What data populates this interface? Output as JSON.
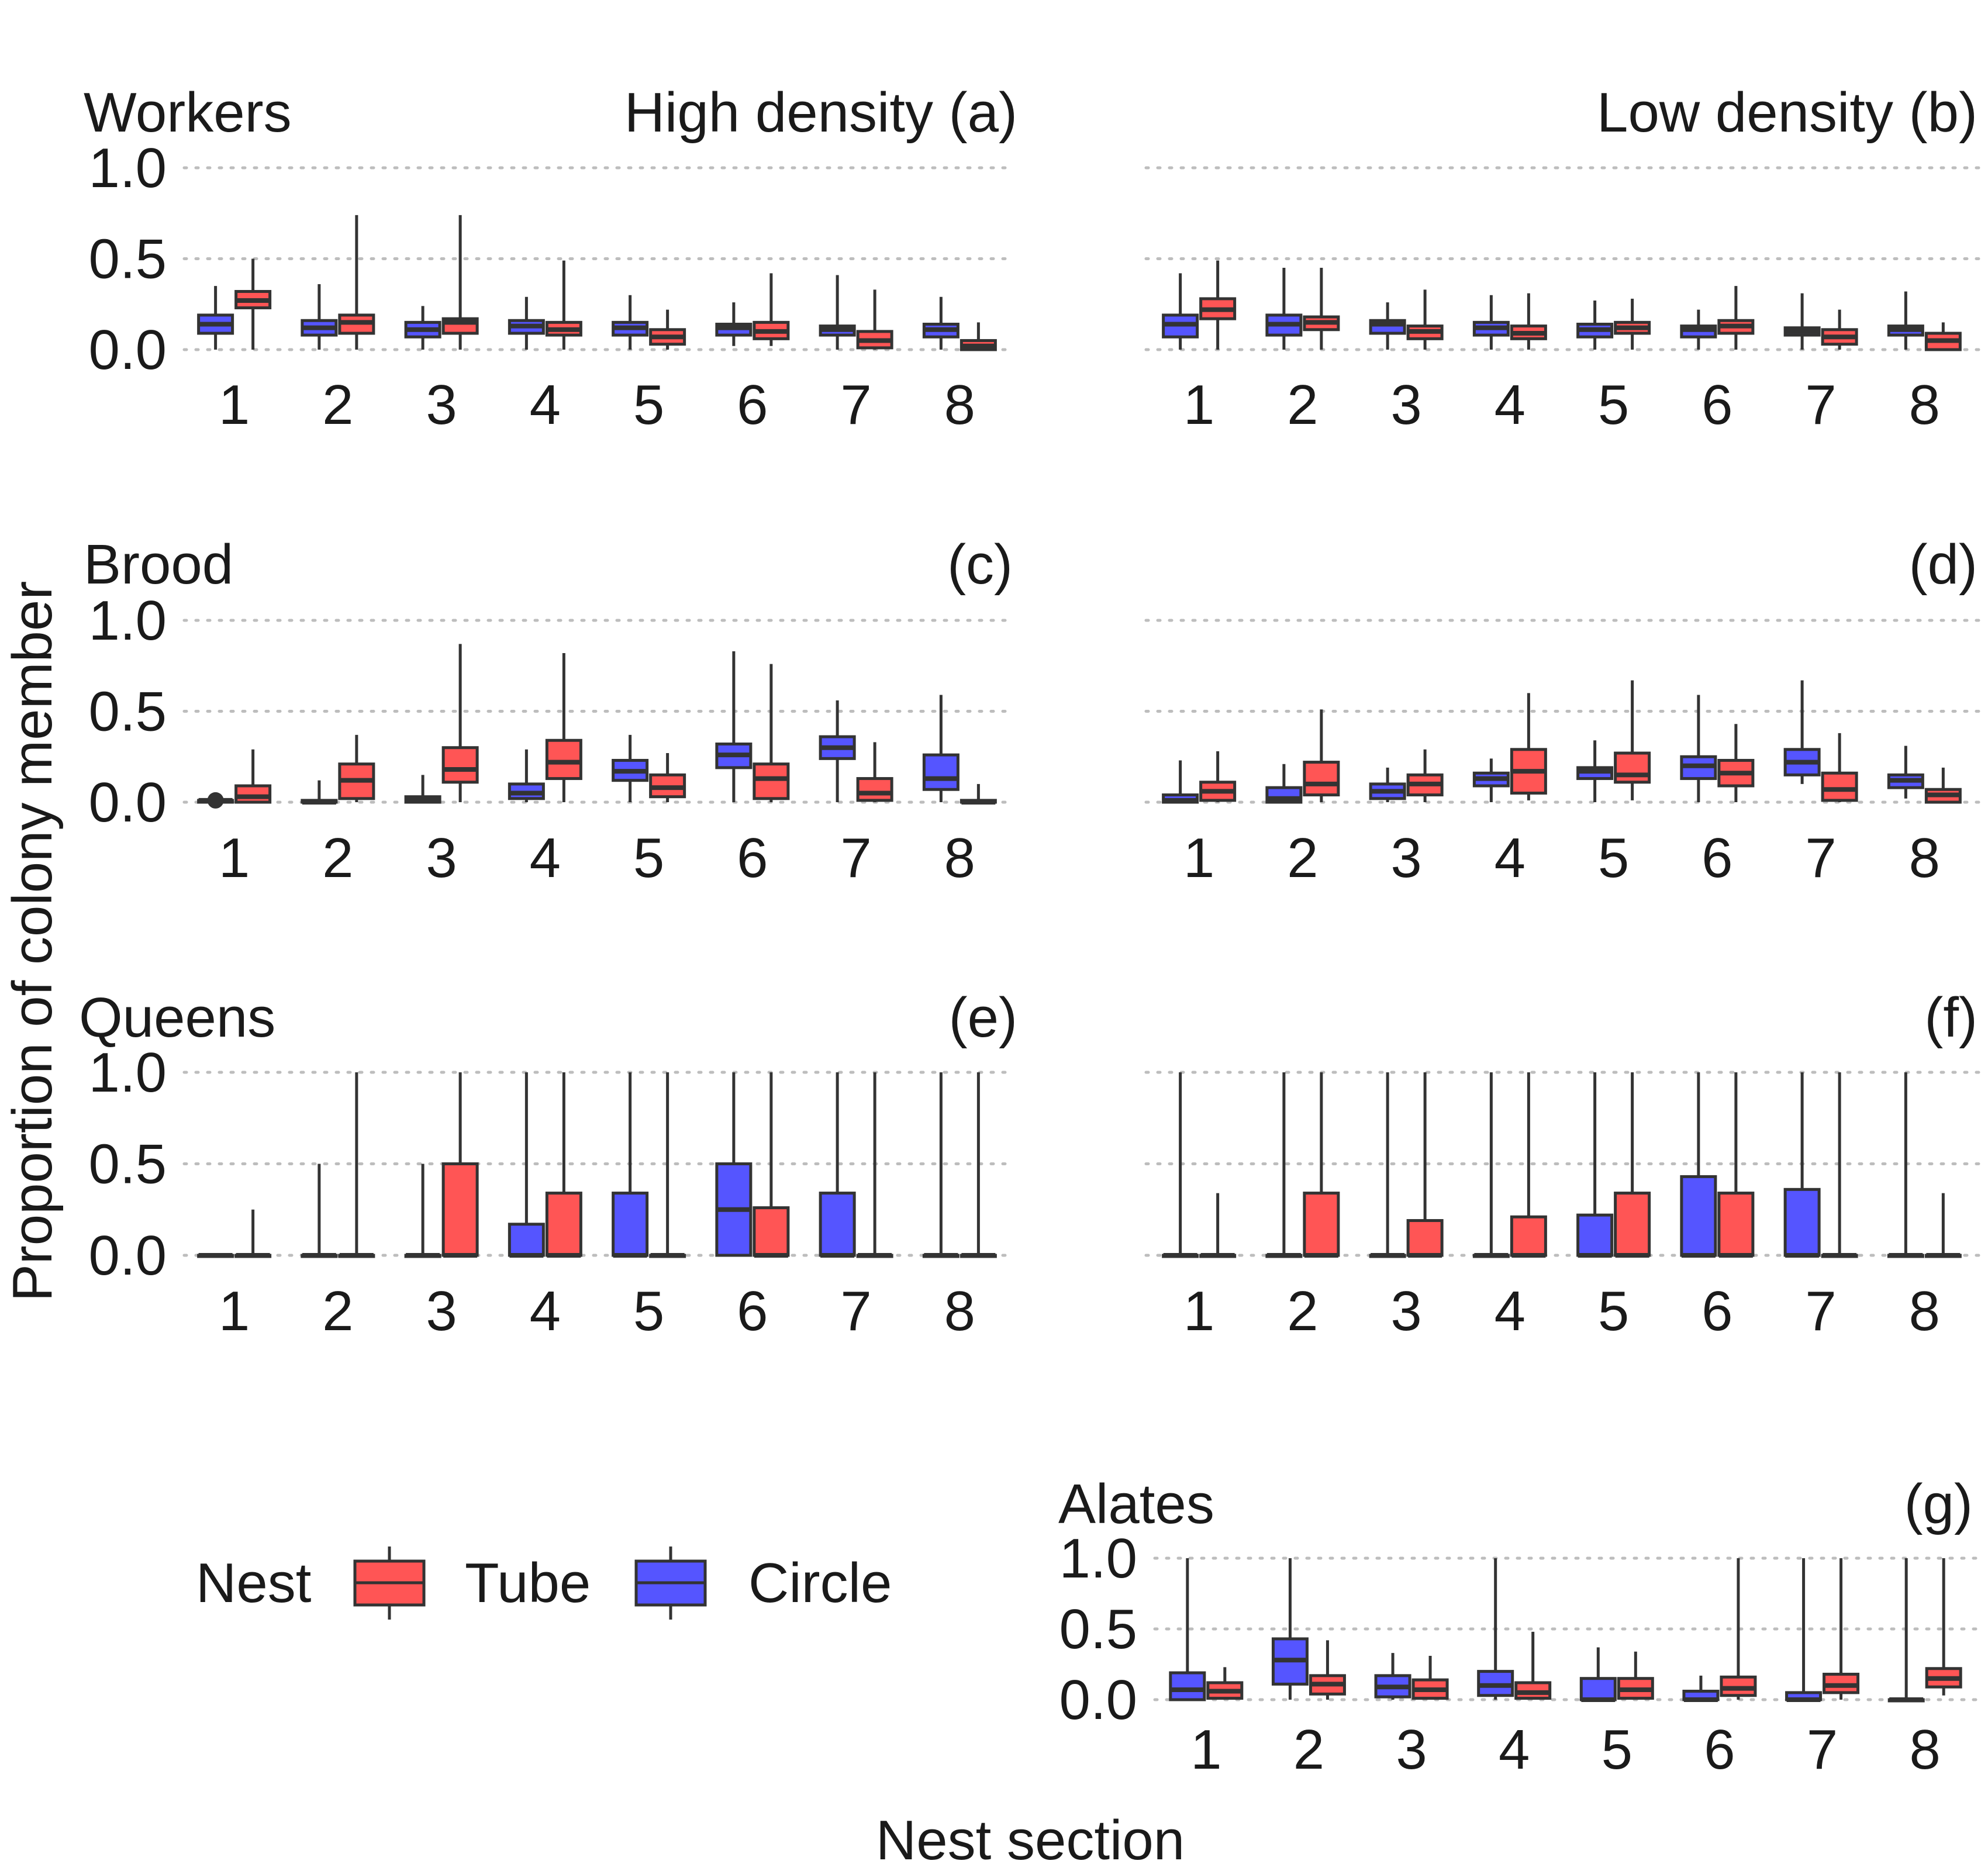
{
  "chart_data": {
    "type": "boxplot",
    "xlabel": "Nest section",
    "ylabel": "Proportion of colony member",
    "ylim": [
      0,
      1
    ],
    "yticks": [
      "0.0",
      "0.5",
      "1.0"
    ],
    "categories": [
      "1",
      "2",
      "3",
      "4",
      "5",
      "6",
      "7",
      "8"
    ],
    "colors": {
      "Circle": "#5555ff",
      "Tube": "#ff5555"
    },
    "legend": {
      "title": "Nest",
      "entries": [
        {
          "name": "Tube",
          "color": "#ff5555"
        },
        {
          "name": "Circle",
          "color": "#5555ff"
        }
      ]
    },
    "panels": [
      {
        "label": "(a)",
        "row_title": "Workers",
        "column_title": "High density",
        "circle": [
          [
            0,
            0.09,
            0.14,
            0.19,
            0.35
          ],
          [
            0,
            0.08,
            0.12,
            0.16,
            0.36
          ],
          [
            0,
            0.07,
            0.11,
            0.15,
            0.24
          ],
          [
            0,
            0.09,
            0.13,
            0.16,
            0.29
          ],
          [
            0,
            0.08,
            0.12,
            0.15,
            0.3
          ],
          [
            0.02,
            0.08,
            0.12,
            0.14,
            0.26
          ],
          [
            0,
            0.08,
            0.11,
            0.13,
            0.41
          ],
          [
            0,
            0.07,
            0.11,
            0.14,
            0.29
          ]
        ],
        "tube": [
          [
            0,
            0.23,
            0.27,
            0.32,
            0.5
          ],
          [
            0,
            0.09,
            0.15,
            0.19,
            0.74
          ],
          [
            0,
            0.09,
            0.15,
            0.17,
            0.74
          ],
          [
            0,
            0.08,
            0.11,
            0.15,
            0.49
          ],
          [
            0,
            0.03,
            0.07,
            0.11,
            0.22
          ],
          [
            0.02,
            0.06,
            0.1,
            0.15,
            0.42
          ],
          [
            0,
            0.01,
            0.05,
            0.1,
            0.33
          ],
          [
            0,
            0,
            0.02,
            0.05,
            0.15
          ]
        ]
      },
      {
        "label": "(b)",
        "column_title": "Low density",
        "circle": [
          [
            0,
            0.07,
            0.14,
            0.19,
            0.42
          ],
          [
            0,
            0.08,
            0.14,
            0.19,
            0.45
          ],
          [
            0,
            0.09,
            0.14,
            0.16,
            0.26
          ],
          [
            0,
            0.08,
            0.12,
            0.15,
            0.3
          ],
          [
            0,
            0.07,
            0.11,
            0.14,
            0.27
          ],
          [
            0,
            0.07,
            0.11,
            0.13,
            0.22
          ],
          [
            0,
            0.08,
            0.1,
            0.12,
            0.31
          ],
          [
            0,
            0.08,
            0.11,
            0.13,
            0.32
          ]
        ],
        "tube": [
          [
            0,
            0.17,
            0.22,
            0.28,
            0.49
          ],
          [
            0,
            0.11,
            0.15,
            0.18,
            0.45
          ],
          [
            0,
            0.06,
            0.1,
            0.13,
            0.33
          ],
          [
            0,
            0.06,
            0.09,
            0.13,
            0.31
          ],
          [
            0,
            0.09,
            0.12,
            0.15,
            0.28
          ],
          [
            0,
            0.09,
            0.13,
            0.16,
            0.35
          ],
          [
            0,
            0.03,
            0.07,
            0.11,
            0.22
          ],
          [
            0,
            0,
            0.05,
            0.09,
            0.15
          ]
        ]
      },
      {
        "label": "(c)",
        "row_title": "Brood",
        "circle": [
          [
            0,
            0,
            0.01,
            0.01,
            0.01
          ],
          [
            0,
            0,
            0,
            0.01,
            0.12
          ],
          [
            0,
            0,
            0.01,
            0.03,
            0.15
          ],
          [
            0,
            0.02,
            0.05,
            0.1,
            0.29
          ],
          [
            0,
            0.12,
            0.17,
            0.23,
            0.37
          ],
          [
            0,
            0.19,
            0.26,
            0.32,
            0.83
          ],
          [
            0,
            0.24,
            0.3,
            0.36,
            0.56
          ],
          [
            0,
            0.07,
            0.13,
            0.26,
            0.59
          ]
        ],
        "tube": [
          [
            0,
            0,
            0.03,
            0.09,
            0.29
          ],
          [
            0,
            0.02,
            0.12,
            0.21,
            0.37
          ],
          [
            0,
            0.11,
            0.18,
            0.3,
            0.87
          ],
          [
            0,
            0.13,
            0.22,
            0.34,
            0.82
          ],
          [
            0,
            0.03,
            0.08,
            0.15,
            0.27
          ],
          [
            0,
            0.02,
            0.13,
            0.21,
            0.76
          ],
          [
            0,
            0.01,
            0.05,
            0.13,
            0.33
          ],
          [
            0,
            0,
            0,
            0.01,
            0.1
          ]
        ]
      },
      {
        "label": "(d)",
        "circle": [
          [
            0,
            0,
            0.01,
            0.04,
            0.23
          ],
          [
            0,
            0,
            0.02,
            0.08,
            0.21
          ],
          [
            0,
            0.02,
            0.06,
            0.1,
            0.19
          ],
          [
            0,
            0.09,
            0.13,
            0.16,
            0.24
          ],
          [
            0,
            0.13,
            0.17,
            0.19,
            0.34
          ],
          [
            0,
            0.13,
            0.2,
            0.25,
            0.59
          ],
          [
            0.1,
            0.15,
            0.22,
            0.29,
            0.67
          ],
          [
            0.02,
            0.08,
            0.12,
            0.15,
            0.31
          ]
        ],
        "tube": [
          [
            0,
            0.01,
            0.06,
            0.11,
            0.28
          ],
          [
            0,
            0.04,
            0.1,
            0.22,
            0.51
          ],
          [
            0,
            0.04,
            0.1,
            0.15,
            0.29
          ],
          [
            0.01,
            0.05,
            0.17,
            0.29,
            0.6
          ],
          [
            0.01,
            0.11,
            0.15,
            0.27,
            0.67
          ],
          [
            0,
            0.09,
            0.16,
            0.23,
            0.43
          ],
          [
            0,
            0.01,
            0.07,
            0.16,
            0.38
          ],
          [
            0,
            0,
            0.04,
            0.07,
            0.19
          ]
        ]
      },
      {
        "label": "(e)",
        "row_title": "Queens",
        "circle": [
          [
            0,
            0,
            0,
            0,
            0
          ],
          [
            0,
            0,
            0,
            0,
            0.5
          ],
          [
            0,
            0,
            0,
            0,
            0.5
          ],
          [
            0,
            0,
            0,
            0.17,
            1
          ],
          [
            0,
            0,
            0,
            0.34,
            1
          ],
          [
            0,
            0,
            0.25,
            0.5,
            1
          ],
          [
            0,
            0,
            0,
            0.34,
            1
          ],
          [
            0,
            0,
            0,
            0,
            1
          ]
        ],
        "tube": [
          [
            0,
            0,
            0,
            0,
            0.25
          ],
          [
            0,
            0,
            0,
            0,
            1
          ],
          [
            0,
            0,
            0,
            0.5,
            1
          ],
          [
            0,
            0,
            0,
            0.34,
            1
          ],
          [
            0,
            0,
            0,
            0,
            1
          ],
          [
            0,
            0,
            0,
            0.26,
            1
          ],
          [
            0,
            0,
            0,
            0,
            1
          ],
          [
            0,
            0,
            0,
            0,
            1
          ]
        ]
      },
      {
        "label": "(f)",
        "circle": [
          [
            0,
            0,
            0,
            0,
            1
          ],
          [
            0,
            0,
            0,
            0,
            1
          ],
          [
            0,
            0,
            0,
            0,
            1
          ],
          [
            0,
            0,
            0,
            0,
            1
          ],
          [
            0,
            0,
            0,
            0.22,
            1
          ],
          [
            0,
            0,
            0,
            0.43,
            1
          ],
          [
            0,
            0,
            0,
            0.36,
            1
          ],
          [
            0,
            0,
            0,
            0,
            1
          ]
        ],
        "tube": [
          [
            0,
            0,
            0,
            0,
            0.34
          ],
          [
            0,
            0,
            0,
            0.34,
            1
          ],
          [
            0,
            0,
            0,
            0.19,
            1
          ],
          [
            0,
            0,
            0,
            0.21,
            1
          ],
          [
            0,
            0,
            0,
            0.34,
            1
          ],
          [
            0,
            0,
            0,
            0.34,
            1
          ],
          [
            0,
            0,
            0,
            0,
            1
          ],
          [
            0,
            0,
            0,
            0,
            0.34
          ]
        ]
      },
      {
        "label": "(g)",
        "row_title": "Alates",
        "circle": [
          [
            0,
            0,
            0.07,
            0.19,
            1
          ],
          [
            0,
            0.11,
            0.28,
            0.43,
            1
          ],
          [
            0,
            0.02,
            0.09,
            0.17,
            0.33
          ],
          [
            0,
            0.03,
            0.1,
            0.2,
            1
          ],
          [
            0,
            0,
            0,
            0.15,
            0.37
          ],
          [
            0,
            0,
            0,
            0.06,
            0.17
          ],
          [
            0,
            0,
            0,
            0.05,
            1
          ],
          [
            0,
            0,
            0,
            0,
            1
          ]
        ],
        "tube": [
          [
            0,
            0.01,
            0.06,
            0.12,
            0.23
          ],
          [
            0,
            0.04,
            0.11,
            0.17,
            0.42
          ],
          [
            0,
            0.01,
            0.07,
            0.14,
            0.31
          ],
          [
            0,
            0.01,
            0.05,
            0.12,
            0.48
          ],
          [
            0,
            0.01,
            0.07,
            0.15,
            0.34
          ],
          [
            0,
            0.03,
            0.08,
            0.16,
            1
          ],
          [
            0,
            0.05,
            0.1,
            0.18,
            1
          ],
          [
            0.03,
            0.09,
            0.15,
            0.22,
            1
          ]
        ]
      }
    ]
  }
}
